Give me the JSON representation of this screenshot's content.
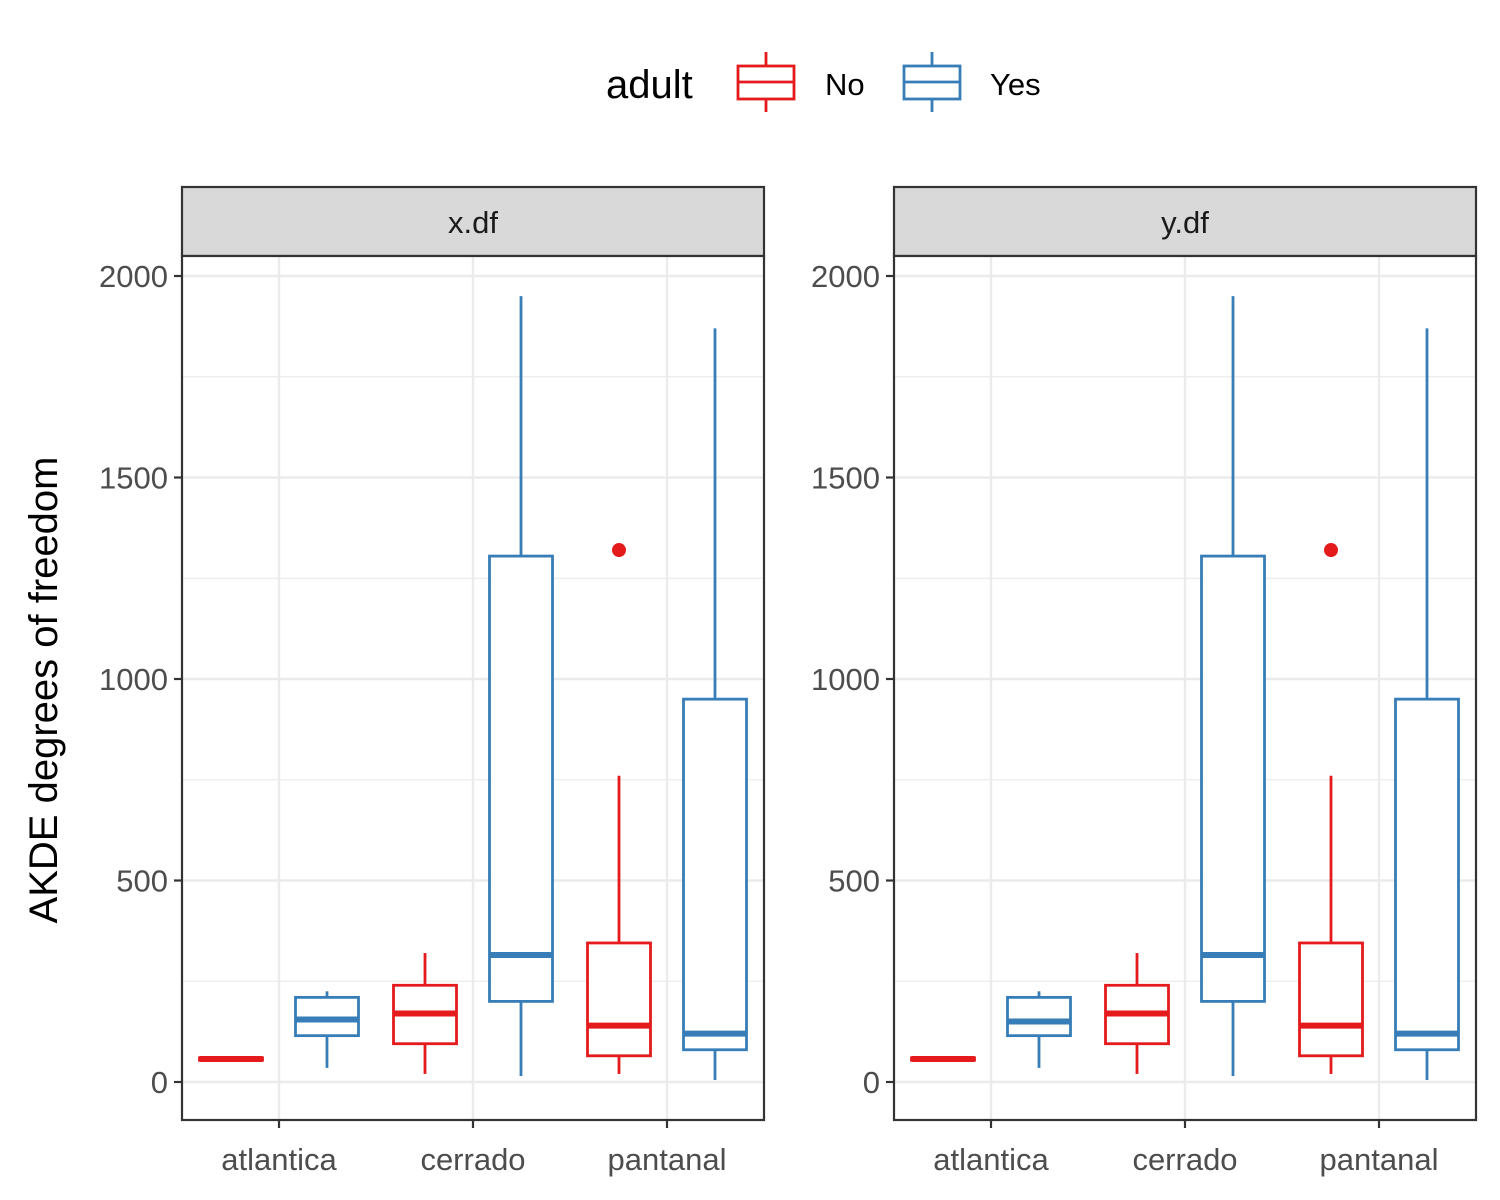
{
  "colors": {
    "No": "#e41a1c",
    "Yes": "#377eb8"
  },
  "legend": {
    "title": "adult",
    "position": "top",
    "entries": [
      {
        "key": "No",
        "label": "No"
      },
      {
        "key": "Yes",
        "label": "Yes"
      }
    ]
  },
  "chart_data": {
    "type": "boxplot",
    "ylabel": "AKDE degrees of freedom",
    "xlabel": "",
    "ylim": [
      -90,
      2220
    ],
    "yticks": [
      0,
      500,
      1000,
      1500,
      2000
    ],
    "grid": true,
    "categories": [
      "atlantica",
      "cerrado",
      "pantanal"
    ],
    "panels": [
      {
        "strip": "x.df",
        "groups": [
          {
            "category": "atlantica",
            "series": "No",
            "whisker_low": 52,
            "q1": 54,
            "median": 57,
            "q3": 60,
            "whisker_high": 62,
            "outliers": []
          },
          {
            "category": "atlantica",
            "series": "Yes",
            "whisker_low": 35,
            "q1": 115,
            "median": 155,
            "q3": 210,
            "whisker_high": 225,
            "outliers": []
          },
          {
            "category": "cerrado",
            "series": "No",
            "whisker_low": 20,
            "q1": 95,
            "median": 170,
            "q3": 240,
            "whisker_high": 320,
            "outliers": []
          },
          {
            "category": "cerrado",
            "series": "Yes",
            "whisker_low": 15,
            "q1": 200,
            "median": 315,
            "q3": 1305,
            "whisker_high": 1950,
            "outliers": []
          },
          {
            "category": "pantanal",
            "series": "No",
            "whisker_low": 20,
            "q1": 65,
            "median": 140,
            "q3": 345,
            "whisker_high": 760,
            "outliers": [
              1320
            ]
          },
          {
            "category": "pantanal",
            "series": "Yes",
            "whisker_low": 5,
            "q1": 80,
            "median": 120,
            "q3": 950,
            "whisker_high": 1870,
            "outliers": []
          }
        ]
      },
      {
        "strip": "y.df",
        "groups": [
          {
            "category": "atlantica",
            "series": "No",
            "whisker_low": 52,
            "q1": 54,
            "median": 57,
            "q3": 60,
            "whisker_high": 62,
            "outliers": []
          },
          {
            "category": "atlantica",
            "series": "Yes",
            "whisker_low": 35,
            "q1": 115,
            "median": 150,
            "q3": 210,
            "whisker_high": 225,
            "outliers": []
          },
          {
            "category": "cerrado",
            "series": "No",
            "whisker_low": 20,
            "q1": 95,
            "median": 170,
            "q3": 240,
            "whisker_high": 320,
            "outliers": []
          },
          {
            "category": "cerrado",
            "series": "Yes",
            "whisker_low": 15,
            "q1": 200,
            "median": 315,
            "q3": 1305,
            "whisker_high": 1950,
            "outliers": []
          },
          {
            "category": "pantanal",
            "series": "No",
            "whisker_low": 20,
            "q1": 65,
            "median": 140,
            "q3": 345,
            "whisker_high": 760,
            "outliers": [
              1320
            ]
          },
          {
            "category": "pantanal",
            "series": "Yes",
            "whisker_low": 5,
            "q1": 80,
            "median": 120,
            "q3": 950,
            "whisker_high": 1870,
            "outliers": []
          }
        ]
      }
    ]
  }
}
